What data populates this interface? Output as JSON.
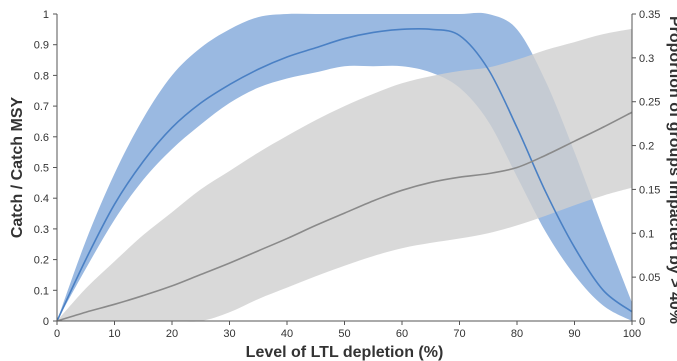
{
  "chart_data": {
    "type": "area",
    "title": "",
    "xlabel": "Level of LTL depletion (%)",
    "ylabel": "Catch / Catch MSY",
    "y2label": "Proportion of groups impacted by > 40%",
    "xlim": [
      0,
      100
    ],
    "ylim": [
      0,
      1
    ],
    "y2lim": [
      0,
      0.35
    ],
    "x_ticks": [
      0,
      10,
      20,
      30,
      40,
      50,
      60,
      70,
      80,
      90,
      100
    ],
    "y_ticks": [
      0,
      0.1,
      0.2,
      0.3,
      0.4,
      0.5,
      0.6,
      0.7,
      0.8,
      0.9,
      1
    ],
    "y2_ticks": [
      0,
      0.05,
      0.1,
      0.15,
      0.2,
      0.25,
      0.3,
      0.35
    ],
    "x_tick_labels": [
      "0",
      "10",
      "20",
      "30",
      "40",
      "50",
      "60",
      "70",
      "80",
      "90",
      "100"
    ],
    "y_tick_labels": [
      "0",
      "0.1",
      "0.2",
      "0.3",
      "0.4",
      "0.5",
      "0.6",
      "0.7",
      "0.8",
      "0.9",
      "1"
    ],
    "y2_tick_labels": [
      "0",
      "0.05",
      "0.1",
      "0.15",
      "0.2",
      "0.25",
      "0.3",
      "0.35"
    ],
    "grid": false,
    "series": [
      {
        "axis": "left",
        "color": "#4a80c4",
        "band_color": "#9ab9e1",
        "x": [
          0,
          5,
          10,
          15,
          20,
          25,
          30,
          35,
          40,
          45,
          50,
          55,
          60,
          65,
          70,
          75,
          80,
          85,
          90,
          95,
          100
        ],
        "y": [
          0,
          0.2,
          0.38,
          0.52,
          0.63,
          0.71,
          0.77,
          0.82,
          0.86,
          0.89,
          0.92,
          0.94,
          0.95,
          0.95,
          0.93,
          0.82,
          0.63,
          0.42,
          0.24,
          0.1,
          0.03
        ],
        "lower": [
          0,
          0.17,
          0.33,
          0.46,
          0.56,
          0.64,
          0.71,
          0.76,
          0.79,
          0.81,
          0.83,
          0.83,
          0.83,
          0.81,
          0.76,
          0.65,
          0.47,
          0.29,
          0.15,
          0.05,
          0
        ],
        "upper": [
          0,
          0.26,
          0.48,
          0.66,
          0.8,
          0.89,
          0.95,
          0.99,
          1,
          1,
          1,
          1,
          1,
          1,
          1,
          1,
          0.95,
          0.78,
          0.55,
          0.3,
          0.06
        ]
      },
      {
        "axis": "right",
        "color": "#8a8a8a",
        "band_color": "#cfcfcf",
        "x": [
          0,
          5,
          10,
          15,
          20,
          25,
          30,
          35,
          40,
          45,
          50,
          55,
          60,
          65,
          70,
          75,
          80,
          85,
          90,
          95,
          100
        ],
        "y": [
          0,
          0.01,
          0.019,
          0.029,
          0.04,
          0.053,
          0.066,
          0.08,
          0.094,
          0.109,
          0.123,
          0.137,
          0.149,
          0.158,
          0.164,
          0.168,
          0.175,
          0.189,
          0.205,
          0.221,
          0.238
        ],
        "lower": [
          0,
          0,
          0,
          0,
          0,
          0,
          0.01,
          0.025,
          0.038,
          0.051,
          0.063,
          0.074,
          0.083,
          0.089,
          0.094,
          0.1,
          0.109,
          0.12,
          0.132,
          0.143,
          0.152
        ],
        "upper": [
          0,
          0.037,
          0.068,
          0.098,
          0.124,
          0.15,
          0.171,
          0.192,
          0.211,
          0.229,
          0.245,
          0.259,
          0.271,
          0.279,
          0.285,
          0.289,
          0.298,
          0.309,
          0.318,
          0.327,
          0.333
        ]
      }
    ]
  }
}
